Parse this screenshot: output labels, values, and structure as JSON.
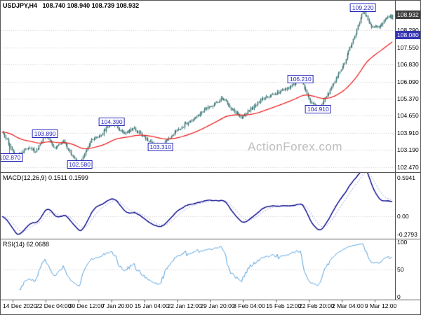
{
  "chart": {
    "main": {
      "title_symbol": "USDJPY,H4",
      "title_ohlc": "108.740 108.940 108.739 108.932",
      "watermark": "ActionForex.com"
    },
    "macd": {
      "title": "MACD(12,26,9) 0.1511 0.1599"
    },
    "rsi": {
      "title": "RSI(14) 62.0688"
    }
  },
  "chart_data": {
    "type": "candlestick",
    "symbol": "USDJPY",
    "timeframe": "H4",
    "current_ohlc": {
      "open": 108.74,
      "high": 108.94,
      "low": 108.739,
      "close": 108.932
    },
    "x_tick_labels": [
      "14 Dec 2020",
      "22 Dec 04:00",
      "30 Dec 12:00",
      "7 Jan 20:00",
      "15 Jan 04:00",
      "22 Jan 12:00",
      "29 Jan 20:00",
      "8 Feb 04:00",
      "15 Feb 12:00",
      "22 Feb 20:00",
      "2 Mar 04:00",
      "9 Mar 12:00"
    ],
    "panels": [
      {
        "name": "price",
        "y_range": [
          102.28,
          109.5
        ],
        "axis_ticks": [
          {
            "label": "108.290",
            "value": 108.29
          },
          {
            "label": "107.550",
            "value": 107.55
          },
          {
            "label": "106.830",
            "value": 106.83
          },
          {
            "label": "106.090",
            "value": 106.09
          },
          {
            "label": "105.370",
            "value": 105.37
          },
          {
            "label": "104.650",
            "value": 104.65
          },
          {
            "label": "103.910",
            "value": 103.91
          },
          {
            "label": "103.190",
            "value": 103.19
          },
          {
            "label": "102.470",
            "value": 102.47
          }
        ],
        "price_marker": {
          "label": "108.932",
          "value": 108.932
        },
        "ma_marker": {
          "label": "108.080",
          "value": 108.08
        },
        "swing_callouts": [
          {
            "label": "102.870",
            "value": 102.87,
            "t": 0.02,
            "kind": "low"
          },
          {
            "label": "103.890",
            "value": 103.89,
            "t": 0.11,
            "kind": "high"
          },
          {
            "label": "102.580",
            "value": 102.58,
            "t": 0.199,
            "kind": "low"
          },
          {
            "label": "104.390",
            "value": 104.39,
            "t": 0.281,
            "kind": "high"
          },
          {
            "label": "103.310",
            "value": 103.31,
            "t": 0.406,
            "kind": "low"
          },
          {
            "label": "106.210",
            "value": 106.21,
            "t": 0.765,
            "kind": "high"
          },
          {
            "label": "104.910",
            "value": 104.91,
            "t": 0.81,
            "kind": "low"
          },
          {
            "label": "109.220",
            "value": 109.22,
            "t": 0.925,
            "kind": "high"
          }
        ],
        "path_anchors": [
          [
            0.0,
            103.9
          ],
          [
            0.014,
            103.55
          ],
          [
            0.036,
            102.88
          ],
          [
            0.068,
            103.35
          ],
          [
            0.085,
            103.1
          ],
          [
            0.11,
            103.89
          ],
          [
            0.133,
            103.3
          ],
          [
            0.157,
            103.55
          ],
          [
            0.178,
            102.95
          ],
          [
            0.199,
            102.58
          ],
          [
            0.228,
            103.6
          ],
          [
            0.249,
            103.75
          ],
          [
            0.281,
            104.39
          ],
          [
            0.311,
            103.9
          ],
          [
            0.338,
            104.1
          ],
          [
            0.374,
            103.6
          ],
          [
            0.406,
            103.31
          ],
          [
            0.436,
            103.85
          ],
          [
            0.466,
            104.25
          ],
          [
            0.489,
            104.5
          ],
          [
            0.516,
            104.85
          ],
          [
            0.543,
            105.15
          ],
          [
            0.566,
            105.4
          ],
          [
            0.591,
            104.85
          ],
          [
            0.614,
            104.6
          ],
          [
            0.641,
            105.0
          ],
          [
            0.667,
            105.35
          ],
          [
            0.703,
            105.6
          ],
          [
            0.738,
            105.9
          ],
          [
            0.765,
            106.21
          ],
          [
            0.785,
            105.35
          ],
          [
            0.81,
            104.91
          ],
          [
            0.836,
            105.6
          ],
          [
            0.854,
            106.2
          ],
          [
            0.872,
            106.7
          ],
          [
            0.89,
            107.5
          ],
          [
            0.907,
            108.2
          ],
          [
            0.921,
            108.9
          ],
          [
            0.925,
            109.15
          ],
          [
            0.945,
            108.45
          ],
          [
            0.962,
            108.4
          ],
          [
            0.98,
            108.7
          ],
          [
            1.0,
            108.93
          ]
        ],
        "num_bars": 320,
        "ma_period": 60
      },
      {
        "name": "macd",
        "params": [
          12,
          26,
          9
        ],
        "values": [
          0.1511,
          0.1599
        ],
        "y_range": [
          -0.33,
          0.66
        ],
        "axis_ticks": [
          {
            "label": "0.5941",
            "value": 0.5941
          },
          {
            "label": "0.00",
            "value": 0
          },
          {
            "label": "-0.2793",
            "value": -0.2793
          }
        ]
      },
      {
        "name": "rsi",
        "params": [
          14
        ],
        "value": 62.0688,
        "y_range": [
          -4,
          104
        ],
        "axis_ticks": [
          {
            "label": "100",
            "value": 100
          },
          {
            "label": "50",
            "value": 50
          },
          {
            "label": "0",
            "value": 0
          }
        ],
        "gridlines": [
          50
        ]
      }
    ],
    "colors": {
      "candle": "#3f7878",
      "ma": "#ee1111",
      "macd": "#00008b",
      "macd_signal": "#9a9ade",
      "rsi": "#55a0dc",
      "grid": "#cccccc",
      "callout": "#2626bb",
      "price_marker_bg": "#3d3d3d",
      "ma_marker_bg": "#3232b4",
      "watermark": "#bdbdbd",
      "border": "#555555"
    }
  }
}
